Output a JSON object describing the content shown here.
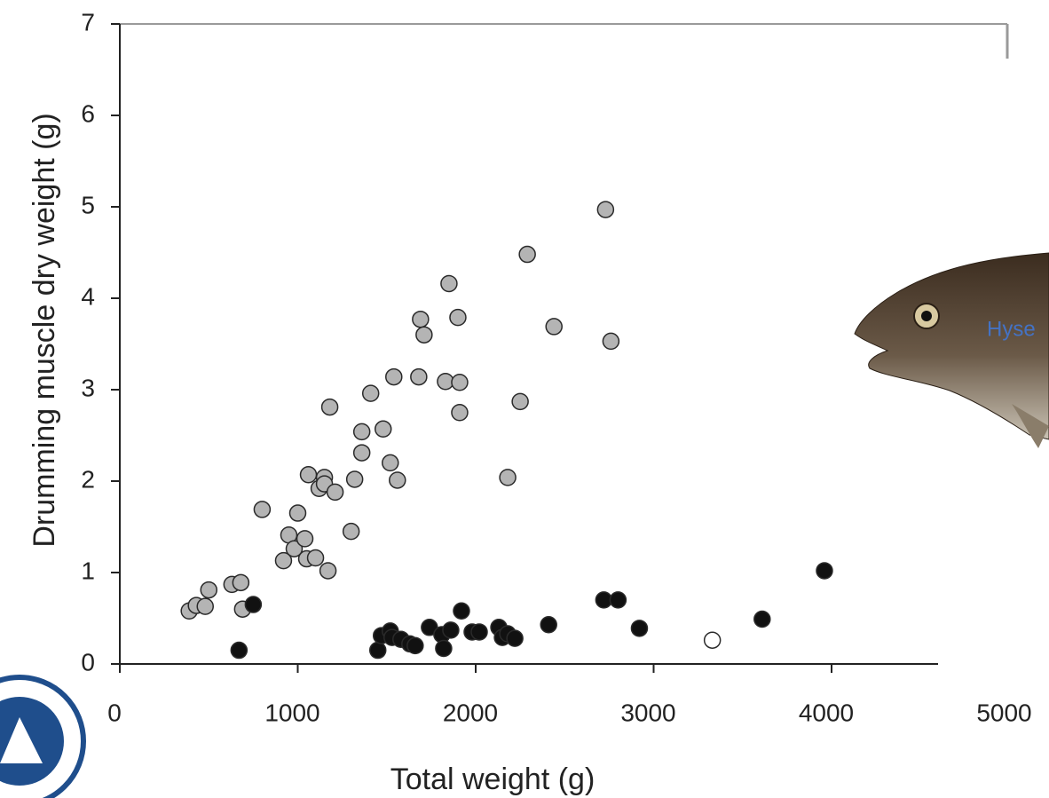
{
  "chart_data": {
    "type": "scatter",
    "x_label": "Total weight (g)",
    "y_label": "Drumming muscle dry weight (g)",
    "annotation": "Hyse",
    "xlim": [
      0,
      5000
    ],
    "xticks": [
      0,
      1000,
      2000,
      3000,
      4000,
      5000
    ],
    "ylim": [
      0,
      7
    ],
    "yticks": [
      0,
      1,
      2,
      3,
      4,
      5,
      6,
      7
    ],
    "series": [
      {
        "color": "#b4b4b4",
        "x": [
          390,
          430,
          480,
          500,
          630,
          680,
          690,
          800,
          920,
          950,
          1000,
          980,
          1040,
          1050,
          1060,
          1100,
          1120,
          1150,
          1150,
          1170,
          1180,
          1210,
          1300,
          1320,
          1360,
          1360,
          1410,
          1480,
          1520,
          1540,
          1560,
          1680,
          1690,
          1710,
          1830,
          1850,
          1900,
          1910,
          1910,
          2180,
          2250,
          2290,
          2440,
          2730,
          2760
        ],
        "values": [
          0.58,
          0.64,
          0.63,
          0.81,
          0.87,
          0.89,
          0.6,
          1.69,
          1.13,
          1.41,
          1.65,
          1.26,
          1.37,
          1.15,
          2.07,
          1.16,
          1.92,
          2.04,
          1.97,
          1.02,
          2.81,
          1.88,
          1.45,
          2.02,
          2.31,
          2.54,
          2.96,
          2.57,
          2.2,
          3.14,
          2.01,
          3.14,
          3.77,
          3.6,
          3.09,
          4.16,
          3.79,
          3.08,
          2.75,
          2.04,
          2.87,
          4.48,
          3.69,
          4.97,
          3.53
        ]
      },
      {
        "color": "#111111",
        "x": [
          670,
          750,
          1450,
          1470,
          1520,
          1530,
          1580,
          1630,
          1660,
          1740,
          1810,
          1820,
          1860,
          1920,
          1980,
          2020,
          2130,
          2150,
          2180,
          2220,
          2410,
          2720,
          2800,
          2920,
          3610,
          3960
        ],
        "values": [
          0.15,
          0.65,
          0.15,
          0.31,
          0.36,
          0.29,
          0.27,
          0.22,
          0.2,
          0.4,
          0.32,
          0.17,
          0.37,
          0.58,
          0.35,
          0.35,
          0.4,
          0.29,
          0.33,
          0.28,
          0.43,
          0.7,
          0.7,
          0.39,
          0.49,
          1.02
        ]
      },
      {
        "color": "#ffffff",
        "x": [
          3330
        ],
        "values": [
          0.26
        ]
      }
    ]
  }
}
